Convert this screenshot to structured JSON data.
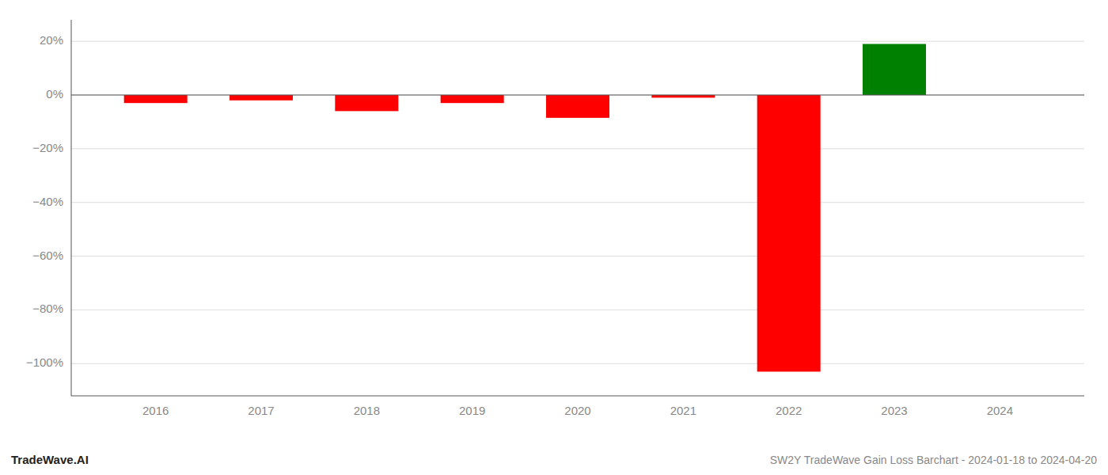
{
  "chart_data": {
    "type": "bar",
    "title": "SW2Y TradeWave Gain Loss Barchart - 2024-01-18 to 2024-04-20",
    "annotations": [
      "TradeWave.AI"
    ],
    "x": [
      2016,
      2017,
      2018,
      2019,
      2020,
      2021,
      2022,
      2023,
      2024
    ],
    "values": [
      -3.0,
      -2.0,
      -6.0,
      -3.0,
      -8.5,
      -1.0,
      -103.0,
      19.0,
      null
    ],
    "colors": [
      "red",
      "red",
      "red",
      "red",
      "red",
      "red",
      "red",
      "green",
      null
    ],
    "xlim": [
      2015.2,
      2024.8
    ],
    "xticks": [
      2016,
      2017,
      2018,
      2019,
      2020,
      2021,
      2022,
      2023,
      2024
    ],
    "ylim": [
      -112,
      28
    ],
    "yticks": [
      {
        "value": 20,
        "label": "20%"
      },
      {
        "value": 0,
        "label": "0%"
      },
      {
        "value": -20,
        "label": "−20%"
      },
      {
        "value": -40,
        "label": "−40%"
      },
      {
        "value": -60,
        "label": "−60%"
      },
      {
        "value": -80,
        "label": "−80%"
      },
      {
        "value": -100,
        "label": "−100%"
      }
    ],
    "grid": true
  }
}
